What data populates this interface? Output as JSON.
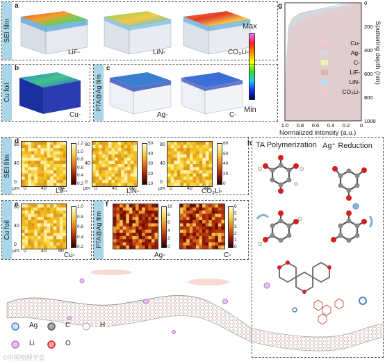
{
  "panels": {
    "a": {
      "letter": "a",
      "side": "SEI film",
      "labels": [
        "LiF-",
        "LiN-",
        "CO₃Li-"
      ]
    },
    "b": {
      "letter": "b",
      "side": "Cu foil",
      "label": "Cu-"
    },
    "c": {
      "letter": "c",
      "side": "PTA@Ag film",
      "labels": [
        "Ag-",
        "C-"
      ]
    },
    "scale": {
      "max": "Max",
      "min": "Min"
    },
    "d": {
      "letter": "d",
      "side": "SEI film",
      "labels": [
        "LiF-",
        "LiN-",
        "CO₃Li-"
      ],
      "cbars": [
        [
          "1.2",
          "1.0",
          "0.8",
          "0.6",
          "0.4",
          "0.2"
        ],
        [
          "50",
          "40",
          "30",
          "20",
          "10"
        ],
        [
          "80",
          "60",
          "40",
          "20",
          "0"
        ]
      ]
    },
    "e": {
      "letter": "e",
      "side": "Cu foil",
      "label": "Cu-",
      "cbar": [
        "1.0",
        "0.8",
        "0.6",
        "0.4",
        "0.2"
      ]
    },
    "f": {
      "letter": "f",
      "side": "PTA@Ag film",
      "labels": [
        "Ag-",
        "C-"
      ],
      "cbars": [
        [
          "10",
          "8",
          "6",
          "4",
          "2",
          "0"
        ],
        [
          "6",
          "5",
          "4",
          "3",
          "2",
          "1",
          "0"
        ]
      ]
    },
    "axis": {
      "y_ticks": [
        "80",
        "40",
        "0"
      ],
      "x_ticks": [
        "0",
        "40",
        "80"
      ],
      "unit": "μm"
    },
    "h": {
      "letter": "h",
      "left_title": "TA Polymerization",
      "right_title": "Ag⁺ Reduction"
    },
    "legend": {
      "ag": "Ag",
      "c": "C",
      "h": "H",
      "li": "Li",
      "o": "O"
    },
    "watermark": "©中国物理学会"
  },
  "colors": {
    "sidebar": "#a9d6e8",
    "ag": "#86b8dc",
    "c": "#777777",
    "h": "#dddddd",
    "li": "#c67ad8",
    "o": "#d62020"
  },
  "chart_data": {
    "type": "area",
    "panel": "g",
    "xlabel": "Normalized intensity (a.u.)",
    "ylabel": "Sputtering depth (nm)",
    "xticks": [
      "1.0",
      "0.8",
      "0.6",
      "0.4",
      "0.2",
      "0"
    ],
    "yticks": [
      "0",
      "200",
      "400",
      "600",
      "800",
      "1000"
    ],
    "xlim": [
      0,
      1
    ],
    "ylim": [
      0,
      1000
    ],
    "x_reversed": true,
    "legend_placement": "right",
    "series": [
      {
        "name": "Cu-",
        "color": "#f4c9cd",
        "x": [
          0,
          0.05,
          0.1,
          0.2,
          0.4,
          0.7,
          0.9,
          0.98,
          1.0
        ],
        "y": [
          0,
          40,
          80,
          120,
          160,
          220,
          300,
          600,
          1000
        ]
      },
      {
        "name": "Ag-",
        "color": "#d7d7d7",
        "x": [
          0.05,
          0.1,
          0.2,
          0.4,
          0.6,
          0.8,
          0.93,
          0.98,
          1.0
        ],
        "y": [
          0,
          30,
          60,
          90,
          120,
          160,
          220,
          500,
          1000
        ]
      },
      {
        "name": "C-",
        "color": "#eef2b0",
        "x": [
          0.1,
          0.2,
          0.4,
          0.6,
          0.8,
          0.9,
          0.95,
          0.98,
          1.0
        ],
        "y": [
          0,
          40,
          80,
          120,
          160,
          220,
          300,
          600,
          1000
        ]
      },
      {
        "name": "LiF-",
        "color": "#d9b8a9",
        "x": [
          0,
          0.1,
          0.3,
          0.6,
          0.8,
          0.9,
          0.95,
          0.98,
          1.0
        ],
        "y": [
          0,
          20,
          40,
          60,
          90,
          130,
          200,
          500,
          1000
        ]
      },
      {
        "name": "LiN-",
        "color": "#b9dcef",
        "x": [
          0.2,
          0.4,
          0.6,
          0.8,
          0.9,
          0.95,
          0.98,
          1.0
        ],
        "y": [
          0,
          30,
          60,
          100,
          150,
          250,
          500,
          1000
        ]
      },
      {
        "name": "CO₃Li-",
        "color": "#f2c6cb",
        "x": [
          0.1,
          0.3,
          0.5,
          0.7,
          0.85,
          0.93,
          0.97,
          1.0
        ],
        "y": [
          0,
          40,
          80,
          120,
          170,
          250,
          500,
          1000
        ]
      }
    ]
  }
}
